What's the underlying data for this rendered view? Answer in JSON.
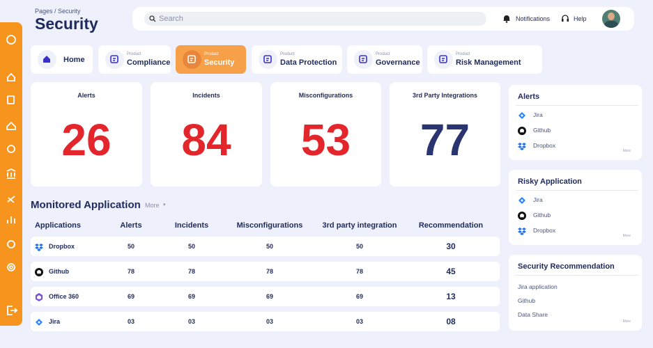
{
  "header": {
    "breadcrumb": "Pages / Security",
    "title": "Security",
    "search_placeholder": "Search",
    "links": [
      "Notifications",
      "Help"
    ]
  },
  "tabs": [
    {
      "label": "Home"
    },
    {
      "caption": "Product",
      "label": "Compliance"
    },
    {
      "caption": "Product",
      "label": "Security"
    },
    {
      "caption": "Product",
      "label": "Data Protection"
    },
    {
      "caption": "Product",
      "label": "Governance"
    },
    {
      "caption": "Product",
      "label": "Risk Management"
    }
  ],
  "stats": [
    {
      "label": "Alerts",
      "value": "26"
    },
    {
      "label": "Incidents",
      "value": "84"
    },
    {
      "label": "Misconfigurations",
      "value": "53"
    },
    {
      "label": "3rd Party Integrations",
      "value": "77"
    }
  ],
  "monitored": {
    "title": "Monitored Application",
    "more": "More",
    "columns": [
      "Applications",
      "Alerts",
      "Incidents",
      "Misconfigurations",
      "3rd party integration",
      "Recommendation"
    ],
    "rows": [
      [
        "Dropbox",
        "50",
        "50",
        "50",
        "50",
        "30"
      ],
      [
        "Github",
        "78",
        "78",
        "78",
        "78",
        "45"
      ],
      [
        "Office 360",
        "69",
        "69",
        "69",
        "69",
        "13"
      ],
      [
        "Jira",
        "03",
        "03",
        "03",
        "03",
        "08"
      ]
    ]
  },
  "panels": [
    {
      "title": "Alerts",
      "items": [
        "Jira",
        "Github",
        "Dropbox"
      ],
      "more": "More"
    },
    {
      "title": "Risky Application",
      "items": [
        "Jira",
        "Github",
        "Dropbox"
      ],
      "more": "More"
    },
    {
      "title": "Security Recommendation",
      "items": [
        "Jira application",
        "Github",
        "Data Share"
      ],
      "more": "More"
    }
  ]
}
